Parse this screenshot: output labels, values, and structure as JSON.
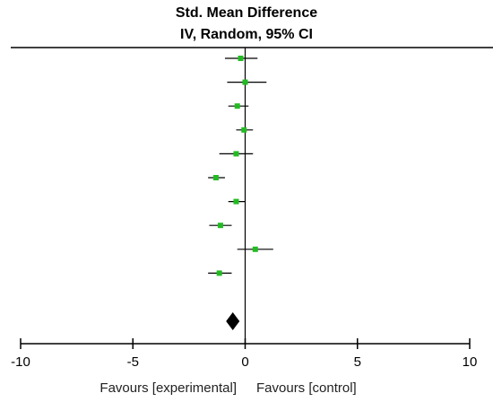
{
  "chart_data": {
    "type": "forest",
    "title_line1": "Std. Mean Difference",
    "title_line2": "IV, Random, 95% CI",
    "xlim": [
      -10,
      10
    ],
    "x_ticks": [
      {
        "value": -10,
        "label": "-10"
      },
      {
        "value": -5,
        "label": "-5"
      },
      {
        "value": 0,
        "label": "0"
      },
      {
        "value": 5,
        "label": "5"
      },
      {
        "value": 10,
        "label": "10"
      }
    ],
    "studies": [
      {
        "estimate": -0.2,
        "ci_low": -0.9,
        "ci_high": 0.55
      },
      {
        "estimate": 0.0,
        "ci_low": -0.8,
        "ci_high": 0.95
      },
      {
        "estimate": -0.35,
        "ci_low": -0.75,
        "ci_high": 0.15
      },
      {
        "estimate": -0.05,
        "ci_low": -0.4,
        "ci_high": 0.35
      },
      {
        "estimate": -0.4,
        "ci_low": -1.15,
        "ci_high": 0.35
      },
      {
        "estimate": -1.3,
        "ci_low": -1.65,
        "ci_high": -0.9
      },
      {
        "estimate": -0.4,
        "ci_low": -0.75,
        "ci_high": 0.0
      },
      {
        "estimate": -1.1,
        "ci_low": -1.6,
        "ci_high": -0.6
      },
      {
        "estimate": 0.45,
        "ci_low": -0.35,
        "ci_high": 1.25
      },
      {
        "estimate": -1.15,
        "ci_low": -1.65,
        "ci_high": -0.6
      }
    ],
    "pooled": {
      "estimate": -0.55,
      "ci_low": -0.85,
      "ci_high": -0.25
    },
    "favours_left": "Favours [experimental]",
    "favours_right": "Favours [control]",
    "marker_color": "#22bb22",
    "diamond_color": "#000000"
  }
}
